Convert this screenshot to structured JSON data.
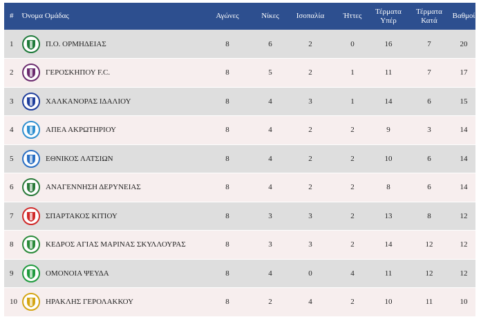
{
  "headers": {
    "pos": "#",
    "team": "Όνομα Ομάδας",
    "played": "Αγώνες",
    "wins": "Νίκες",
    "draws": "Ισοπαλία",
    "losses": "Ήττες",
    "goals_for_1": "Τέρματα",
    "goals_for_2": "Υπέρ",
    "goals_against_1": "Τέρματα",
    "goals_against_2": "Κατά",
    "points": "Βαθμοί"
  },
  "rows": [
    {
      "pos": "1",
      "team": "Π.Ο. ΟΡΜΗΔΕΙΑΣ",
      "played": "8",
      "wins": "6",
      "draws": "2",
      "losses": "0",
      "gf": "16",
      "ga": "7",
      "pts": "20",
      "logo": "ormideia-crest-icon",
      "logo_color": "#1e7a3a"
    },
    {
      "pos": "2",
      "team": "ΓΕΡΟΣΚΗΠΟΥ F.C.",
      "played": "8",
      "wins": "5",
      "draws": "2",
      "losses": "1",
      "gf": "11",
      "ga": "7",
      "pts": "17",
      "logo": "geroskipou-crest-icon",
      "logo_color": "#6b2a6e"
    },
    {
      "pos": "3",
      "team": "ΧΑΛΚΑΝΟΡΑΣ ΙΔΑΛΙΟΥ",
      "played": "8",
      "wins": "4",
      "draws": "3",
      "losses": "1",
      "gf": "14",
      "ga": "6",
      "pts": "15",
      "logo": "chalkanoras-crest-icon",
      "logo_color": "#1f3e9c"
    },
    {
      "pos": "4",
      "team": "ΑΠΕΑ ΑΚΡΩΤΗΡΙΟΥ",
      "played": "8",
      "wins": "4",
      "draws": "2",
      "losses": "2",
      "gf": "9",
      "ga": "3",
      "pts": "14",
      "logo": "apea-crest-icon",
      "logo_color": "#2f8fd0"
    },
    {
      "pos": "5",
      "team": "ΕΘΝΙΚΟΣ ΛΑΤΣΙΩΝ",
      "played": "8",
      "wins": "4",
      "draws": "2",
      "losses": "2",
      "gf": "10",
      "ga": "6",
      "pts": "14",
      "logo": "ethnikos-crest-icon",
      "logo_color": "#2a6fc4"
    },
    {
      "pos": "6",
      "team": "ΑΝΑΓΕΝΝΗΣΗ ΔΕΡΥΝΕΙΑΣ",
      "played": "8",
      "wins": "4",
      "draws": "2",
      "losses": "2",
      "gf": "8",
      "ga": "6",
      "pts": "14",
      "logo": "anagennisi-crest-icon",
      "logo_color": "#2a7a3a"
    },
    {
      "pos": "7",
      "team": "ΣΠΑΡΤΑΚΟΣ ΚΙΤΙΟΥ",
      "played": "8",
      "wins": "3",
      "draws": "3",
      "losses": "2",
      "gf": "13",
      "ga": "8",
      "pts": "12",
      "logo": "spartakos-crest-icon",
      "logo_color": "#d02a2a"
    },
    {
      "pos": "8",
      "team": "ΚΕΔΡΟΣ ΑΓΙΑΣ ΜΑΡΙΝΑΣ ΣΚΥΛΛΟΥΡΑΣ",
      "played": "8",
      "wins": "3",
      "draws": "3",
      "losses": "2",
      "gf": "14",
      "ga": "12",
      "pts": "12",
      "logo": "kedros-crest-icon",
      "logo_color": "#2a8a3a"
    },
    {
      "pos": "9",
      "team": "ΟΜΟΝΟΙΑ ΨΕΥΔΑ",
      "played": "8",
      "wins": "4",
      "draws": "0",
      "losses": "4",
      "gf": "11",
      "ga": "12",
      "pts": "12",
      "logo": "omonoia-crest-icon",
      "logo_color": "#1f9a3e"
    },
    {
      "pos": "10",
      "team": "ΗΡΑΚΛΗΣ ΓΕΡΟΛΑΚΚΟΥ",
      "played": "8",
      "wins": "2",
      "draws": "4",
      "losses": "2",
      "gf": "10",
      "ga": "11",
      "pts": "10",
      "logo": "iraklis-crest-icon",
      "logo_color": "#d4a514"
    }
  ]
}
